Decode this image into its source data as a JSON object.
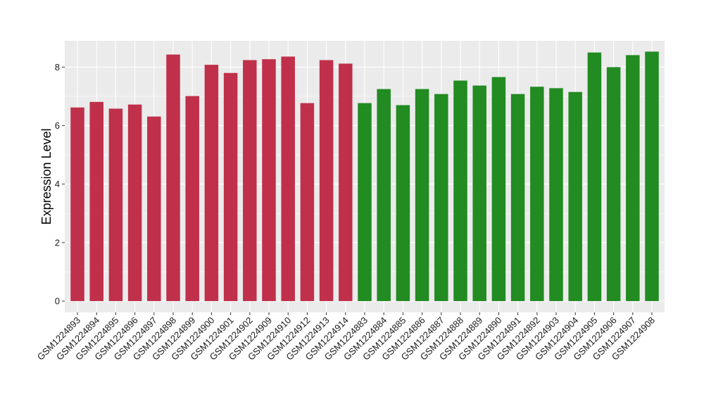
{
  "chart_data": {
    "type": "bar",
    "title": "",
    "xlabel": "",
    "ylabel": "Expression Level",
    "ylim": [
      0,
      8.9
    ],
    "yticks": [
      0,
      2,
      4,
      6,
      8
    ],
    "grid": true,
    "legend": "none",
    "colors": {
      "group_a": "#c0304a",
      "group_b": "#228b22",
      "panel": "#ebebeb",
      "gridline": "#ffffff"
    },
    "categories": [
      "GSM1224893",
      "GSM1224894",
      "GSM1224895",
      "GSM1224896",
      "GSM1224897",
      "GSM1224898",
      "GSM1224899",
      "GSM1224900",
      "GSM1224901",
      "GSM1224902",
      "GSM1224909",
      "GSM1224910",
      "GSM1224912",
      "GSM1224913",
      "GSM1224914",
      "GSM1224883",
      "GSM1224884",
      "GSM1224885",
      "GSM1224886",
      "GSM1224887",
      "GSM1224888",
      "GSM1224889",
      "GSM1224890",
      "GSM1224891",
      "GSM1224892",
      "GSM1224903",
      "GSM1224904",
      "GSM1224905",
      "GSM1224906",
      "GSM1224907",
      "GSM1224908"
    ],
    "values": [
      6.62,
      6.81,
      6.58,
      6.72,
      6.31,
      8.43,
      7.01,
      8.08,
      7.8,
      8.24,
      8.27,
      8.36,
      6.77,
      8.24,
      8.12,
      6.77,
      7.25,
      6.7,
      7.25,
      7.08,
      7.54,
      7.37,
      7.66,
      7.08,
      7.33,
      7.28,
      7.15,
      8.5,
      8.0,
      8.41,
      8.53
    ],
    "bar_group": [
      "a",
      "a",
      "a",
      "a",
      "a",
      "a",
      "a",
      "a",
      "a",
      "a",
      "a",
      "a",
      "a",
      "a",
      "a",
      "b",
      "b",
      "b",
      "b",
      "b",
      "b",
      "b",
      "b",
      "b",
      "b",
      "b",
      "b",
      "b",
      "b",
      "b",
      "b"
    ]
  }
}
